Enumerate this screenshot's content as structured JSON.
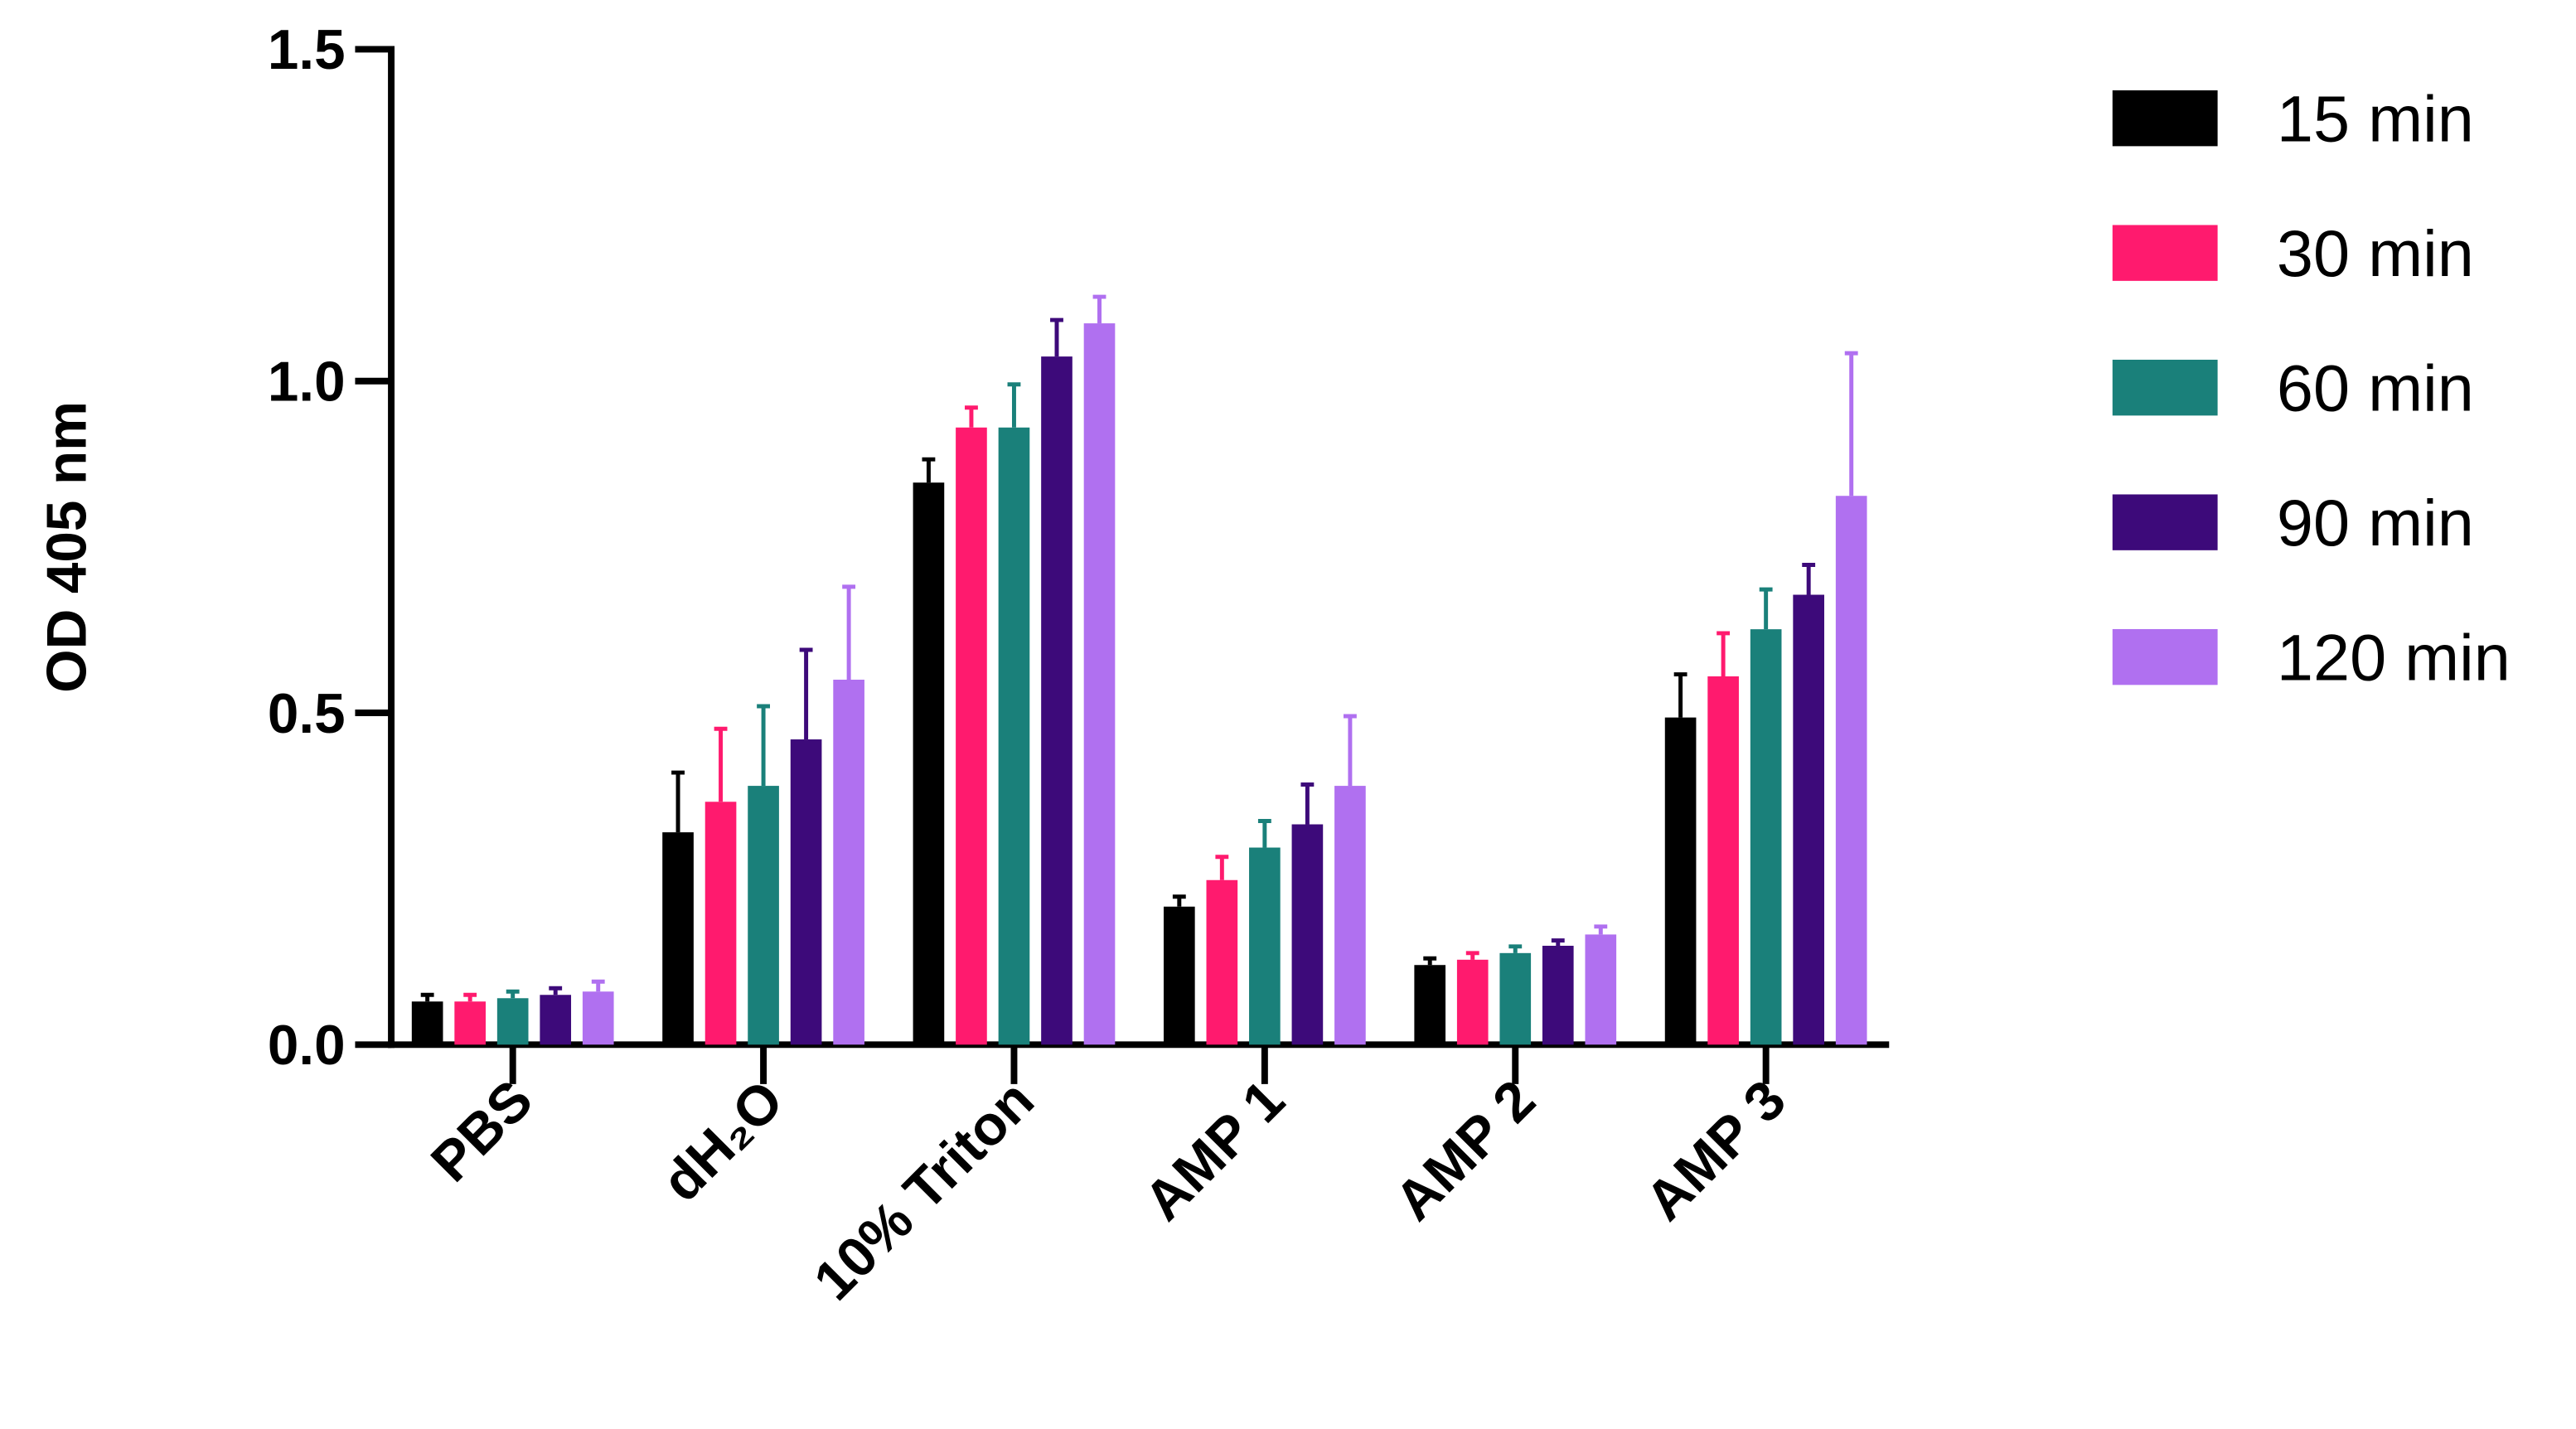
{
  "chart_data": {
    "type": "bar",
    "y_label": "OD 405 nm",
    "categories": [
      "PBS",
      "dH₂O",
      "10% Triton",
      "AMP 1",
      "AMP 2",
      "AMP 3"
    ],
    "series": [
      {
        "name": "15 min",
        "color": "#000000",
        "values": [
          0.065,
          0.32,
          0.847,
          0.208,
          0.12,
          0.493
        ],
        "errors": [
          0.01,
          0.09,
          0.035,
          0.015,
          0.01,
          0.065
        ]
      },
      {
        "name": "30 min",
        "color": "#ff1a6e",
        "values": [
          0.065,
          0.366,
          0.93,
          0.248,
          0.128,
          0.555
        ],
        "errors": [
          0.01,
          0.11,
          0.03,
          0.035,
          0.01,
          0.065
        ]
      },
      {
        "name": "60 min",
        "color": "#1a807a",
        "values": [
          0.07,
          0.39,
          0.93,
          0.297,
          0.138,
          0.626
        ],
        "errors": [
          0.01,
          0.12,
          0.065,
          0.04,
          0.01,
          0.06
        ]
      },
      {
        "name": "90 min",
        "color": "#3d0a7a",
        "values": [
          0.075,
          0.46,
          1.037,
          0.332,
          0.149,
          0.678
        ],
        "errors": [
          0.01,
          0.135,
          0.055,
          0.06,
          0.008,
          0.045
        ]
      },
      {
        "name": "120 min",
        "color": "#b070f0",
        "values": [
          0.08,
          0.55,
          1.087,
          0.39,
          0.166,
          0.827
        ],
        "errors": [
          0.015,
          0.14,
          0.04,
          0.105,
          0.012,
          0.215
        ]
      }
    ],
    "ylim": [
      0,
      1.5
    ],
    "yticks": [
      {
        "value": 0,
        "label": "0.0"
      },
      0.5,
      {
        "value": 1,
        "label": "1.0"
      },
      1.5
    ]
  }
}
